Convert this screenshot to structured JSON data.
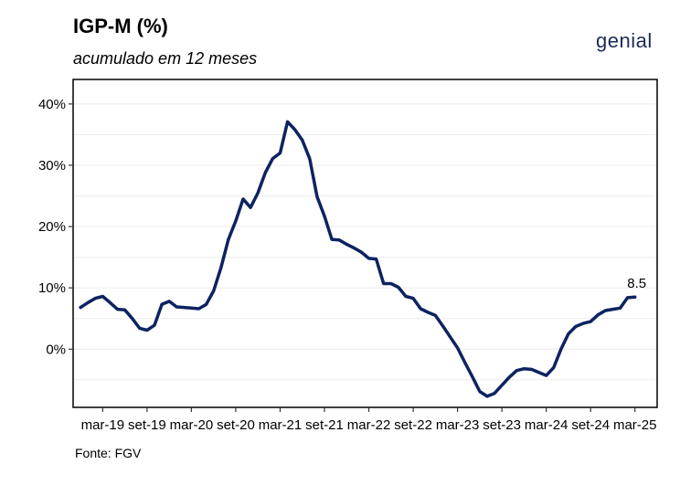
{
  "header": {
    "title": "IGP-M (%)",
    "subtitle": "acumulado em 12 meses",
    "logo_text": "genial"
  },
  "footer": {
    "source": "Fonte: FGV"
  },
  "chart_data": {
    "type": "line",
    "title": "IGP-M (%)",
    "subtitle": "acumulado em 12 meses",
    "xlabel": "",
    "ylabel": "",
    "ylim": [
      -9.5,
      44
    ],
    "yticks": [
      {
        "value": 0,
        "label": "0%"
      },
      {
        "value": 10,
        "label": "10%"
      },
      {
        "value": 20,
        "label": "20%"
      },
      {
        "value": 30,
        "label": "30%"
      },
      {
        "value": 40,
        "label": "40%"
      }
    ],
    "xticks": [
      {
        "value": "2019-03",
        "label": "mar-19"
      },
      {
        "value": "2019-09",
        "label": "set-19"
      },
      {
        "value": "2020-03",
        "label": "mar-20"
      },
      {
        "value": "2020-09",
        "label": "set-20"
      },
      {
        "value": "2021-03",
        "label": "mar-21"
      },
      {
        "value": "2021-09",
        "label": "set-21"
      },
      {
        "value": "2022-03",
        "label": "mar-22"
      },
      {
        "value": "2022-09",
        "label": "set-22"
      },
      {
        "value": "2023-03",
        "label": "mar-23"
      },
      {
        "value": "2023-09",
        "label": "set-23"
      },
      {
        "value": "2024-03",
        "label": "mar-24"
      },
      {
        "value": "2024-09",
        "label": "set-24"
      },
      {
        "value": "2025-03",
        "label": "mar-25"
      }
    ],
    "grid": true,
    "line_color": "#0d2361",
    "series": [
      {
        "x": [
          "2018-12",
          "2019-01",
          "2019-02",
          "2019-03",
          "2019-04",
          "2019-05",
          "2019-06",
          "2019-07",
          "2019-08",
          "2019-09",
          "2019-10",
          "2019-11",
          "2019-12",
          "2020-01",
          "2020-02",
          "2020-03",
          "2020-04",
          "2020-05",
          "2020-06",
          "2020-07",
          "2020-08",
          "2020-09",
          "2020-10",
          "2020-11",
          "2020-12",
          "2021-01",
          "2021-02",
          "2021-03",
          "2021-04",
          "2021-05",
          "2021-06",
          "2021-07",
          "2021-08",
          "2021-09",
          "2021-10",
          "2021-11",
          "2021-12",
          "2022-01",
          "2022-02",
          "2022-03",
          "2022-04",
          "2022-05",
          "2022-06",
          "2022-07",
          "2022-08",
          "2022-09",
          "2022-10",
          "2022-11",
          "2022-12",
          "2023-01",
          "2023-02",
          "2023-03",
          "2023-04",
          "2023-05",
          "2023-06",
          "2023-07",
          "2023-08",
          "2023-09",
          "2023-10",
          "2023-11",
          "2023-12",
          "2024-01",
          "2024-02",
          "2024-03",
          "2024-04",
          "2024-05",
          "2024-06",
          "2024-07",
          "2024-08",
          "2024-09",
          "2024-10",
          "2024-11",
          "2024-12",
          "2025-01",
          "2025-02",
          "2025-03"
        ],
        "values": [
          6.8,
          7.6,
          8.3,
          8.6,
          7.6,
          6.5,
          6.4,
          5.0,
          3.4,
          3.1,
          3.9,
          7.3,
          7.8,
          6.9,
          6.8,
          6.7,
          6.6,
          7.3,
          9.5,
          13.3,
          17.9,
          20.9,
          24.5,
          23.1,
          25.5,
          28.8,
          31.1,
          32.0,
          37.1,
          35.8,
          34.1,
          31.1,
          24.9,
          21.7,
          17.9,
          17.8,
          17.1,
          16.5,
          15.8,
          14.8,
          14.7,
          10.7,
          10.7,
          10.1,
          8.6,
          8.3,
          6.6,
          6.0,
          5.5,
          3.8,
          2.0,
          0.2,
          -2.2,
          -4.5,
          -6.9,
          -7.7,
          -7.2,
          -5.9,
          -4.6,
          -3.5,
          -3.2,
          -3.3,
          -3.8,
          -4.3,
          -3.0,
          0.0,
          2.5,
          3.7,
          4.2,
          4.5,
          5.6,
          6.3,
          6.5,
          6.7,
          8.4,
          8.5
        ]
      }
    ],
    "annotations": [
      {
        "x": "2025-03",
        "y": 8.5,
        "text": "8.5"
      }
    ]
  }
}
